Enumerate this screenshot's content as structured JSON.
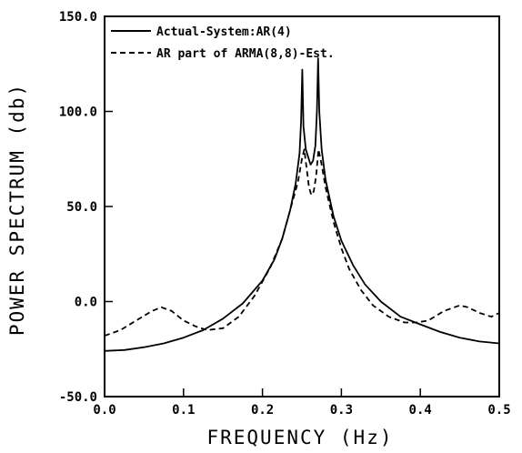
{
  "chart_data": {
    "type": "line",
    "xlabel": "FREQUENCY (Hz)",
    "ylabel": "POWER SPECTRUM (db)",
    "xlim": [
      0.0,
      0.5
    ],
    "ylim": [
      -50.0,
      150.0
    ],
    "x_ticks": [
      "0.0",
      "0.1",
      "0.2",
      "0.3",
      "0.4",
      "0.5"
    ],
    "y_ticks": [
      "-50.0",
      "0.0",
      "50.0",
      "100.0",
      "150.0"
    ],
    "legend_position": "top-left",
    "grid": false,
    "series": [
      {
        "name": "Actual-System:AR(4)",
        "style": "solid",
        "color": "#000000",
        "points": [
          [
            0.0,
            -26
          ],
          [
            0.025,
            -25.5
          ],
          [
            0.05,
            -24
          ],
          [
            0.075,
            -22
          ],
          [
            0.1,
            -19
          ],
          [
            0.125,
            -15
          ],
          [
            0.15,
            -9
          ],
          [
            0.175,
            -1
          ],
          [
            0.2,
            11
          ],
          [
            0.215,
            22
          ],
          [
            0.225,
            33
          ],
          [
            0.235,
            48
          ],
          [
            0.242,
            62
          ],
          [
            0.247,
            78
          ],
          [
            0.249,
            95
          ],
          [
            0.2505,
            122
          ],
          [
            0.252,
            92
          ],
          [
            0.255,
            80
          ],
          [
            0.258,
            76
          ],
          [
            0.261,
            72
          ],
          [
            0.264,
            74
          ],
          [
            0.267,
            82
          ],
          [
            0.269,
            100
          ],
          [
            0.2705,
            128
          ],
          [
            0.272,
            100
          ],
          [
            0.275,
            80
          ],
          [
            0.28,
            64
          ],
          [
            0.29,
            45
          ],
          [
            0.3,
            32
          ],
          [
            0.315,
            19
          ],
          [
            0.33,
            9
          ],
          [
            0.35,
            0
          ],
          [
            0.375,
            -8
          ],
          [
            0.4,
            -12
          ],
          [
            0.425,
            -16
          ],
          [
            0.45,
            -19
          ],
          [
            0.475,
            -21
          ],
          [
            0.5,
            -22
          ]
        ]
      },
      {
        "name": "AR part of ARMA(8,8)-Est.",
        "style": "dashed",
        "color": "#000000",
        "points": [
          [
            0.0,
            -18
          ],
          [
            0.02,
            -15
          ],
          [
            0.04,
            -10
          ],
          [
            0.06,
            -5
          ],
          [
            0.072,
            -3
          ],
          [
            0.085,
            -5
          ],
          [
            0.1,
            -10
          ],
          [
            0.115,
            -13
          ],
          [
            0.13,
            -15
          ],
          [
            0.15,
            -14
          ],
          [
            0.17,
            -8
          ],
          [
            0.19,
            3
          ],
          [
            0.21,
            18
          ],
          [
            0.225,
            33
          ],
          [
            0.235,
            48
          ],
          [
            0.245,
            63
          ],
          [
            0.25,
            75
          ],
          [
            0.253,
            80
          ],
          [
            0.256,
            70
          ],
          [
            0.259,
            60
          ],
          [
            0.262,
            56
          ],
          [
            0.265,
            58
          ],
          [
            0.268,
            66
          ],
          [
            0.271,
            80
          ],
          [
            0.275,
            72
          ],
          [
            0.28,
            60
          ],
          [
            0.29,
            42
          ],
          [
            0.3,
            28
          ],
          [
            0.31,
            17
          ],
          [
            0.325,
            6
          ],
          [
            0.34,
            -2
          ],
          [
            0.36,
            -8
          ],
          [
            0.38,
            -11
          ],
          [
            0.395,
            -11
          ],
          [
            0.41,
            -10
          ],
          [
            0.43,
            -5
          ],
          [
            0.45,
            -2
          ],
          [
            0.46,
            -3
          ],
          [
            0.475,
            -6
          ],
          [
            0.49,
            -8
          ],
          [
            0.5,
            -6
          ]
        ]
      }
    ]
  }
}
